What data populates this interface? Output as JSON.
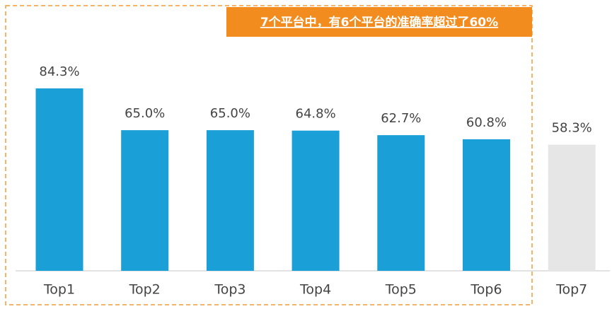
{
  "chart_data": {
    "type": "bar",
    "annotation": "7个平台中，有6个平台的准确率超过了60%",
    "categories": [
      "Top1",
      "Top2",
      "Top3",
      "Top4",
      "Top5",
      "Top6",
      "Top7"
    ],
    "values": [
      84.3,
      65.0,
      65.0,
      64.8,
      62.7,
      60.8,
      58.3
    ],
    "value_labels": [
      "84.3%",
      "65.0%",
      "65.0%",
      "64.8%",
      "62.7%",
      "60.8%",
      "58.3%"
    ],
    "colors": [
      "#1a9fd6",
      "#1a9fd6",
      "#1a9fd6",
      "#1a9fd6",
      "#1a9fd6",
      "#1a9fd6",
      "#e6e6e6"
    ]
  }
}
